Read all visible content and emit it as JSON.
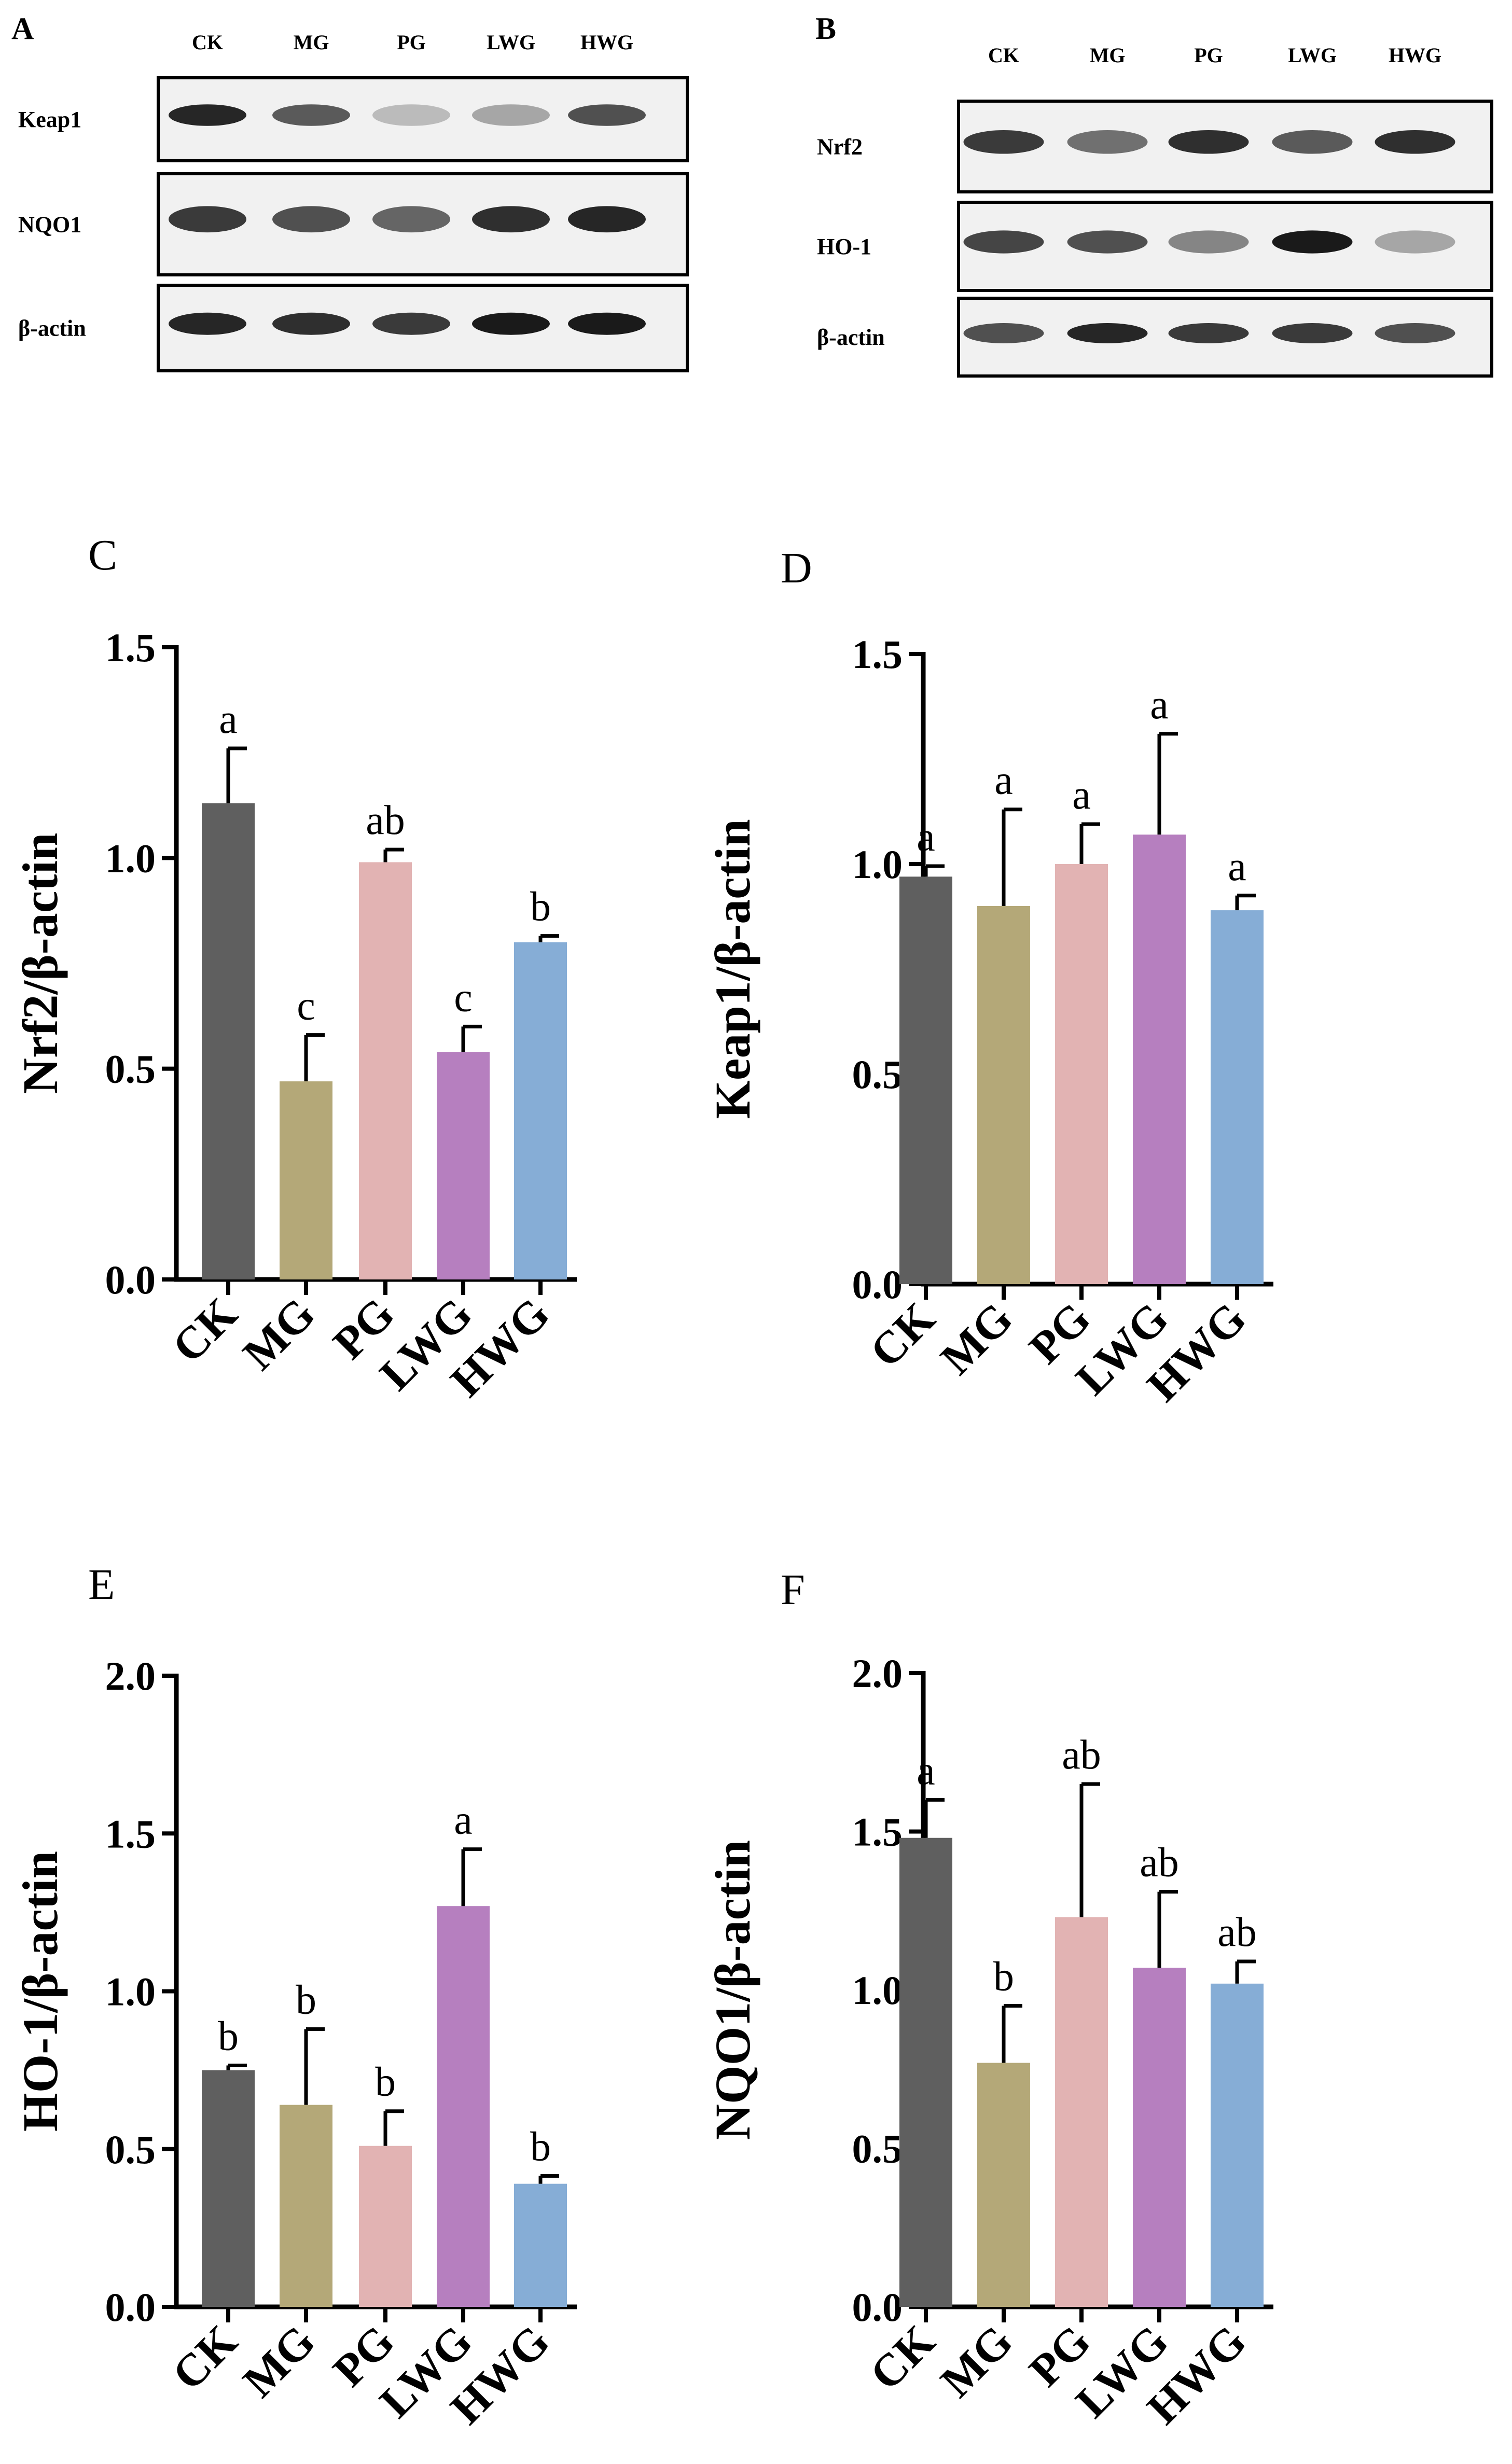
{
  "figure": {
    "blots": [
      {
        "panel": "A",
        "lanes": [
          "CK",
          "MG",
          "PG",
          "LWG",
          "HWG"
        ],
        "rows": [
          {
            "label": "Keap1",
            "bands": [
              0.95,
              0.7,
              0.25,
              0.35,
              0.75
            ]
          },
          {
            "label": "NQO1",
            "bands": [
              0.85,
              0.75,
              0.65,
              0.9,
              0.95
            ]
          },
          {
            "label": "β-actin",
            "bands": [
              0.95,
              0.9,
              0.85,
              1.0,
              1.0
            ]
          }
        ]
      },
      {
        "panel": "B",
        "lanes": [
          "CK",
          "MG",
          "PG",
          "LWG",
          "HWG"
        ],
        "rows": [
          {
            "label": "Nrf2",
            "bands": [
              0.85,
              0.6,
              0.9,
              0.7,
              0.9
            ]
          },
          {
            "label": "HO-1",
            "bands": [
              0.8,
              0.75,
              0.5,
              1.0,
              0.35
            ]
          },
          {
            "label": "β-actin",
            "bands": [
              0.75,
              0.95,
              0.85,
              0.85,
              0.75
            ]
          }
        ]
      }
    ]
  },
  "chart_data": [
    {
      "panel": "C",
      "type": "bar",
      "categories": [
        "CK",
        "MG",
        "PG",
        "LWG",
        "HWG"
      ],
      "values": [
        1.13,
        0.47,
        0.99,
        0.54,
        0.8
      ],
      "errors": [
        0.13,
        0.11,
        0.03,
        0.06,
        0.015
      ],
      "significance": [
        "a",
        "c",
        "ab",
        "c",
        "b"
      ],
      "ylabel": "Nrf2/β-actin",
      "ylim": [
        0,
        1.5
      ],
      "yticks": [
        "0.0",
        "0.5",
        "1.0",
        "1.5"
      ]
    },
    {
      "panel": "D",
      "type": "bar",
      "categories": [
        "CK",
        "MG",
        "PG",
        "LWG",
        "HWG"
      ],
      "values": [
        0.97,
        0.9,
        1.0,
        1.07,
        0.89
      ],
      "errors": [
        0.025,
        0.23,
        0.095,
        0.24,
        0.035
      ],
      "significance": [
        "a",
        "a",
        "a",
        "a",
        "a"
      ],
      "ylabel": "Keap1/β-actin",
      "ylim": [
        0,
        1.5
      ],
      "yticks": [
        "0.0",
        "0.5",
        "1.0",
        "1.5"
      ]
    },
    {
      "panel": "E",
      "type": "bar",
      "categories": [
        "CK",
        "MG",
        "PG",
        "LWG",
        "HWG"
      ],
      "values": [
        0.75,
        0.64,
        0.51,
        1.27,
        0.39
      ],
      "errors": [
        0.015,
        0.24,
        0.11,
        0.18,
        0.025
      ],
      "significance": [
        "b",
        "b",
        "b",
        "a",
        "b"
      ],
      "ylabel": "HO-1/β-actin",
      "ylim": [
        0,
        2.0
      ],
      "yticks": [
        "0.0",
        "0.5",
        "1.0",
        "1.5",
        "2.0"
      ]
    },
    {
      "panel": "F",
      "type": "bar",
      "categories": [
        "CK",
        "MG",
        "PG",
        "LWG",
        "HWG"
      ],
      "values": [
        1.48,
        0.77,
        1.23,
        1.07,
        1.02
      ],
      "errors": [
        0.12,
        0.18,
        0.42,
        0.24,
        0.07
      ],
      "significance": [
        "a",
        "b",
        "ab",
        "ab",
        "ab"
      ],
      "ylabel": "NQO1/β-actin",
      "ylim": [
        0,
        2.0
      ],
      "yticks": [
        "0.0",
        "0.5",
        "1.0",
        "1.5",
        "2.0"
      ]
    }
  ],
  "colors": {
    "CK": "#5f5f5f",
    "MG": "#b4a878",
    "PG": "#e2b3b3",
    "LWG": "#b67fbf",
    "HWG": "#86add6",
    "axis": "#000000"
  }
}
